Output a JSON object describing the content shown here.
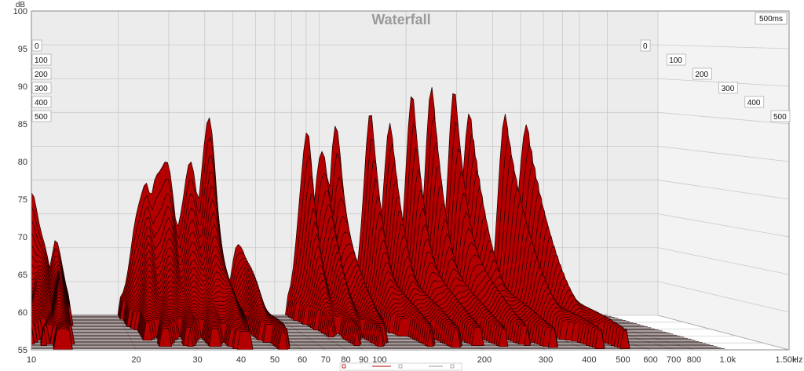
{
  "chart_data": {
    "type": "area",
    "subtype": "waterfall-3d",
    "title": "Waterfall",
    "time_badge": "500ms",
    "ylabel": "dB",
    "xunit": "Hz",
    "ylim": [
      55,
      100
    ],
    "xlim": [
      10,
      1500
    ],
    "xscale": "log",
    "y_ticks": [
      "100",
      "95",
      "90",
      "85",
      "80",
      "75",
      "70",
      "65",
      "60",
      "55"
    ],
    "x_ticks": [
      {
        "v": 10,
        "label": "10"
      },
      {
        "v": 20,
        "label": "20"
      },
      {
        "v": 30,
        "label": "30"
      },
      {
        "v": 40,
        "label": "40"
      },
      {
        "v": 50,
        "label": "50"
      },
      {
        "v": 60,
        "label": "60"
      },
      {
        "v": 70,
        "label": "70"
      },
      {
        "v": 80,
        "label": "80"
      },
      {
        "v": 90,
        "label": "90"
      },
      {
        "v": 100,
        "label": "100"
      },
      {
        "v": 200,
        "label": "200"
      },
      {
        "v": 300,
        "label": "300"
      },
      {
        "v": 400,
        "label": "400"
      },
      {
        "v": 500,
        "label": "500"
      },
      {
        "v": 600,
        "label": "600"
      },
      {
        "v": 700,
        "label": "700"
      },
      {
        "v": 800,
        "label": "800"
      },
      {
        "v": 1000,
        "label": "1.0k"
      },
      {
        "v": 1500,
        "label": "1.50k"
      }
    ],
    "time_ticks_ms": [
      "0",
      "100",
      "200",
      "300",
      "400",
      "500"
    ],
    "grid": true,
    "fill_color": "#b30000",
    "line_color": "#1a0000",
    "peaks": [
      {
        "f": 10.2,
        "db": 72,
        "w": 0.05,
        "decay": 0.55
      },
      {
        "f": 12.3,
        "db": 67,
        "w": 0.025,
        "decay": 0.9
      },
      {
        "f": 24.5,
        "db": 75,
        "w": 0.045,
        "decay": 0.5
      },
      {
        "f": 28.5,
        "db": 78.5,
        "w": 0.06,
        "decay": 0.45
      },
      {
        "f": 35.5,
        "db": 76,
        "w": 0.06,
        "decay": 0.5
      },
      {
        "f": 41,
        "db": 83,
        "w": 0.045,
        "decay": 0.55
      },
      {
        "f": 53,
        "db": 67,
        "w": 0.03,
        "decay": 0.7
      },
      {
        "f": 90,
        "db": 82,
        "w": 0.035,
        "decay": 0.4
      },
      {
        "f": 102,
        "db": 81,
        "w": 0.035,
        "decay": 0.45
      },
      {
        "f": 115,
        "db": 83,
        "w": 0.035,
        "decay": 0.45
      },
      {
        "f": 150,
        "db": 83.5,
        "w": 0.035,
        "decay": 0.45
      },
      {
        "f": 175,
        "db": 82,
        "w": 0.035,
        "decay": 0.5
      },
      {
        "f": 210,
        "db": 86,
        "w": 0.035,
        "decay": 0.45
      },
      {
        "f": 245,
        "db": 87,
        "w": 0.035,
        "decay": 0.45
      },
      {
        "f": 295,
        "db": 87,
        "w": 0.035,
        "decay": 0.45
      },
      {
        "f": 330,
        "db": 84,
        "w": 0.035,
        "decay": 0.5
      },
      {
        "f": 440,
        "db": 86,
        "w": 0.03,
        "decay": 0.5
      },
      {
        "f": 520,
        "db": 84,
        "w": 0.035,
        "decay": 0.5
      }
    ],
    "floor_db": 57
  }
}
